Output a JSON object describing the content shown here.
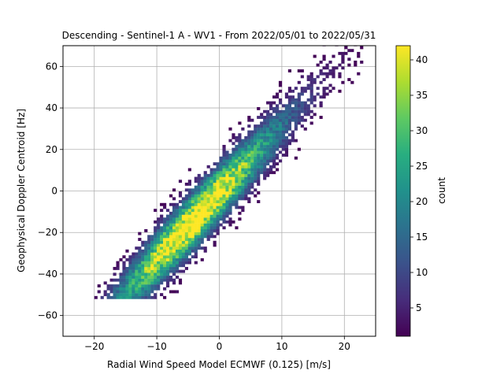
{
  "chart_data": {
    "type": "heatmap",
    "title": "Descending - Sentinel-1 A - WV1 - From 2022/05/01 to 2022/05/31",
    "xlabel": "Radial Wind Speed Model ECMWF (0.125) [m/s]",
    "ylabel": "Geophysical Doppler Centroid [Hz]",
    "xlim": [
      -25,
      25
    ],
    "ylim": [
      -70,
      70
    ],
    "x_ticks": [
      -20,
      -10,
      0,
      10,
      20
    ],
    "x_tick_labels": [
      "−20",
      "−10",
      "0",
      "10",
      "20"
    ],
    "y_ticks": [
      -60,
      -40,
      -20,
      0,
      20,
      40,
      60
    ],
    "y_tick_labels": [
      "−60",
      "−40",
      "−20",
      "0",
      "20",
      "40",
      "60"
    ],
    "grid": true,
    "colormap": "viridis",
    "colorbar": {
      "label": "count",
      "range": [
        1,
        42
      ],
      "ticks": [
        5,
        10,
        15,
        20,
        25,
        30,
        35,
        40
      ],
      "tick_labels": [
        "5",
        "10",
        "15",
        "20",
        "25",
        "30",
        "35",
        "40"
      ]
    },
    "distribution": {
      "description_values": "2D histogram of counts; dense diagonal band",
      "peak_x": -5,
      "peak_y": -15,
      "peak_count": 42,
      "slope_hz_per_ms": 3.2,
      "x_range_data": [
        -20,
        23
      ],
      "y_range_data": [
        -52,
        70
      ]
    }
  }
}
